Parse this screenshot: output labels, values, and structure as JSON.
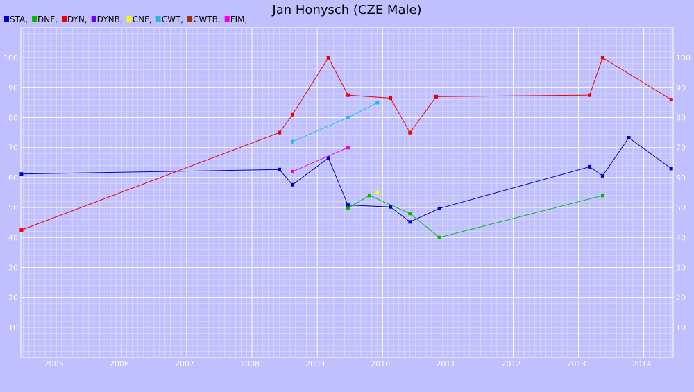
{
  "chart_data": {
    "type": "line",
    "title": "Jan Honysch (CZE Male)",
    "xlabel": "",
    "ylabel": "",
    "xlim": [
      2004.46,
      2014.45
    ],
    "ylim": [
      0,
      110
    ],
    "x_ticks": [
      "2005",
      "2006",
      "2007",
      "2008",
      "2009",
      "2010",
      "2011",
      "2012",
      "2013",
      "2014"
    ],
    "y_ticks": [
      10,
      20,
      30,
      40,
      50,
      60,
      70,
      80,
      90,
      100
    ],
    "grid": true,
    "legend_position": "top-left",
    "legend": [
      {
        "label": "STA,",
        "color": "#0000cc"
      },
      {
        "label": "DNF,",
        "color": "#00bb00"
      },
      {
        "label": "DYN,",
        "color": "#ee0000"
      },
      {
        "label": "DYNB,",
        "color": "#6a00ee"
      },
      {
        "label": "CNF,",
        "color": "#ffff00"
      },
      {
        "label": "CWT,",
        "color": "#22bbdd"
      },
      {
        "label": "CWTB,",
        "color": "#993300"
      },
      {
        "label": "FIM,",
        "color": "#ee00ee"
      }
    ],
    "series": [
      {
        "name": "STA",
        "color": "#0000cc",
        "points": [
          [
            2004.47,
            61.2
          ],
          [
            2008.42,
            62.7
          ],
          [
            2008.62,
            57.6
          ],
          [
            2009.17,
            66.5
          ],
          [
            2009.47,
            50.8
          ],
          [
            2010.12,
            50.2
          ],
          [
            2010.42,
            45.2
          ],
          [
            2010.87,
            49.7
          ],
          [
            2013.17,
            63.6
          ],
          [
            2013.37,
            60.6
          ],
          [
            2013.77,
            73.3
          ],
          [
            2014.42,
            63.0
          ]
        ]
      },
      {
        "name": "DNF",
        "color": "#00bb00",
        "points": [
          [
            2009.47,
            49.8
          ],
          [
            2009.8,
            54.0
          ],
          [
            2010.42,
            48.0
          ],
          [
            2010.87,
            40.0
          ],
          [
            2013.37,
            54.0
          ]
        ]
      },
      {
        "name": "DYN",
        "color": "#ee0000",
        "points": [
          [
            2004.47,
            42.5
          ],
          [
            2008.42,
            75.0
          ],
          [
            2008.62,
            81.0
          ],
          [
            2009.17,
            100.0
          ],
          [
            2009.47,
            87.5
          ],
          [
            2010.12,
            86.5
          ],
          [
            2010.42,
            75.0
          ],
          [
            2010.82,
            87.0
          ],
          [
            2013.17,
            87.5
          ],
          [
            2013.37,
            100.0
          ],
          [
            2014.42,
            86.0
          ]
        ]
      },
      {
        "name": "CNF",
        "color": "#ffff00",
        "points": [
          [
            2009.92,
            55.0
          ]
        ]
      },
      {
        "name": "CWT",
        "color": "#22bbdd",
        "points": [
          [
            2008.62,
            72.0
          ],
          [
            2009.47,
            80.0
          ],
          [
            2009.92,
            85.0
          ]
        ]
      },
      {
        "name": "FIM",
        "color": "#ee00ee",
        "points": [
          [
            2008.62,
            62.0
          ],
          [
            2009.47,
            70.0
          ]
        ]
      }
    ]
  }
}
